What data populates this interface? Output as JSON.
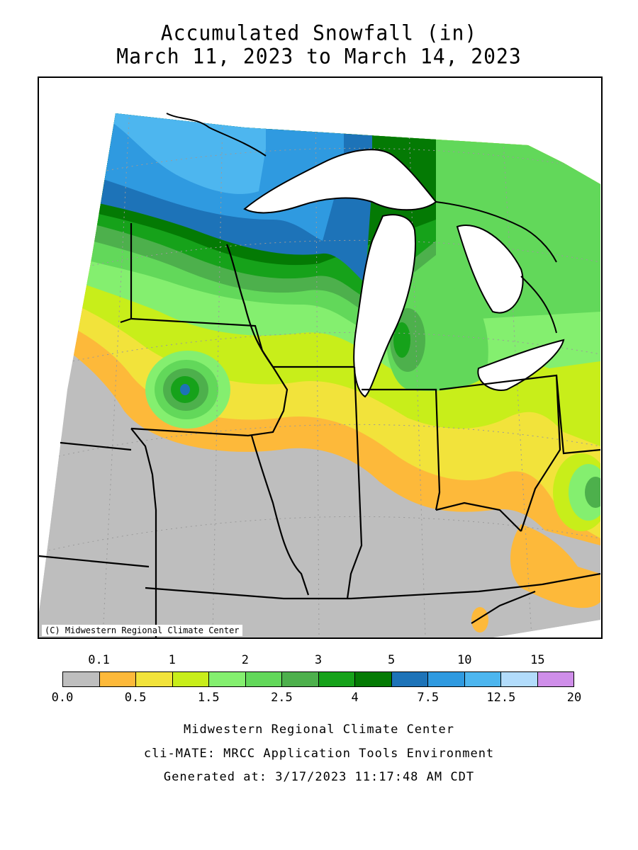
{
  "title": {
    "line1": "Accumulated Snowfall (in)",
    "line2": "March 11, 2023 to March 14, 2023"
  },
  "map": {
    "copyright": "(C) Midwestern Regional Climate Center",
    "no_data_color": "#bebebe"
  },
  "legend": {
    "top_labels": [
      "0.1",
      "1",
      "2",
      "3",
      "5",
      "10",
      "15"
    ],
    "bottom_labels": [
      "0.0",
      "0.5",
      "1.5",
      "2.5",
      "4",
      "7.5",
      "12.5",
      "20"
    ],
    "colors": [
      "#bebebe",
      "#fdb93a",
      "#f2e33b",
      "#c8ee1a",
      "#84ef6f",
      "#62d85a",
      "#4db04c",
      "#16a21a",
      "#047a04",
      "#1d73b8",
      "#2f9ae0",
      "#4db6ef",
      "#b2dcfb",
      "#cf8ee9"
    ]
  },
  "footer": {
    "line1": "Midwestern Regional Climate Center",
    "line2": "cli-MATE: MRCC Application Tools Environment",
    "line3": "Generated at: 3/17/2023 11:17:48 AM CDT"
  }
}
